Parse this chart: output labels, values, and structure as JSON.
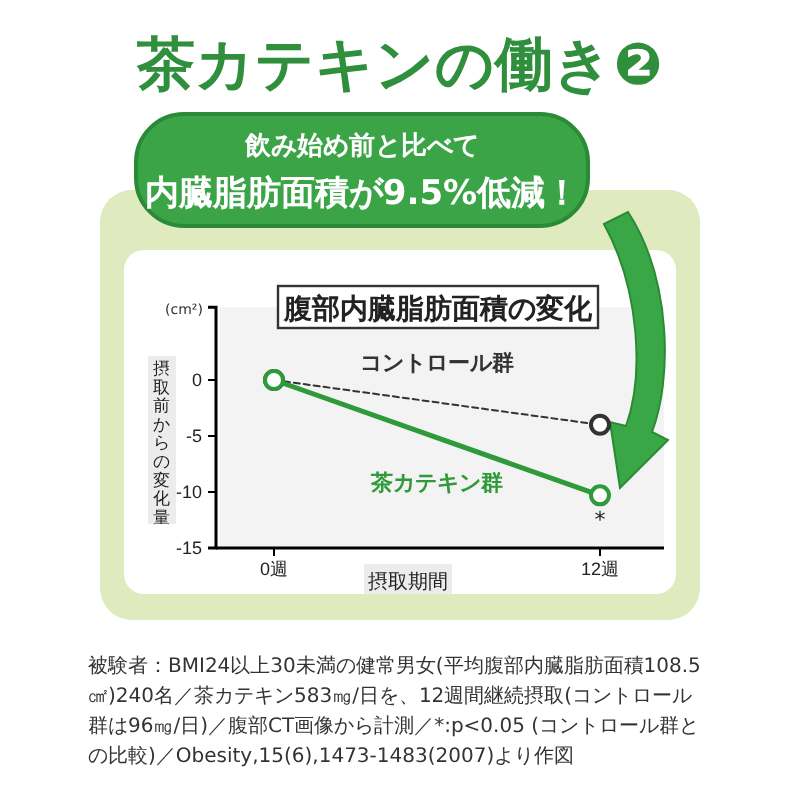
{
  "chart_data": {
    "type": "line",
    "title": "茶カテキンの働き❷",
    "subtitle": "飲み始め前と比べて",
    "categories": [
      "0週",
      "12週"
    ],
    "series": [
      {
        "name": "コントロール群",
        "color": "#333333",
        "values": [
          0,
          -4
        ],
        "line_style": "dashed"
      },
      {
        "name": "茶カテキン群",
        "color": "#2e9a3a",
        "values": [
          0,
          -10.3
        ],
        "line_style": "solid"
      }
    ],
    "ylim": [
      -15,
      6.5
    ],
    "yticks": [
      -15,
      -10,
      -5,
      0
    ],
    "xlabel": "摂取期間",
    "ylabel": "摂取前からの変化量",
    "marker": "circle",
    "grid": false,
    "legend": false,
    "annotations": [
      "内臓脂肪面積が9.5%低減！",
      "腹部内臓脂肪面積の変化",
      "(cm²)",
      {
        "text": "*",
        "x": "12週",
        "y": -10.3
      },
      "被験者：BMI24以上30未満の健常男女(平均腹部内臓脂肪面積108.5㎠)240名／茶カテキン583㎎/日を、12週間継続摂取(コントロール群は96㎎/日)／腹部CT画像から計測／*:p<0.05 (コントロール群との比較)／Obesity,15(6),1473-1483(2007)より作図"
    ]
  }
}
